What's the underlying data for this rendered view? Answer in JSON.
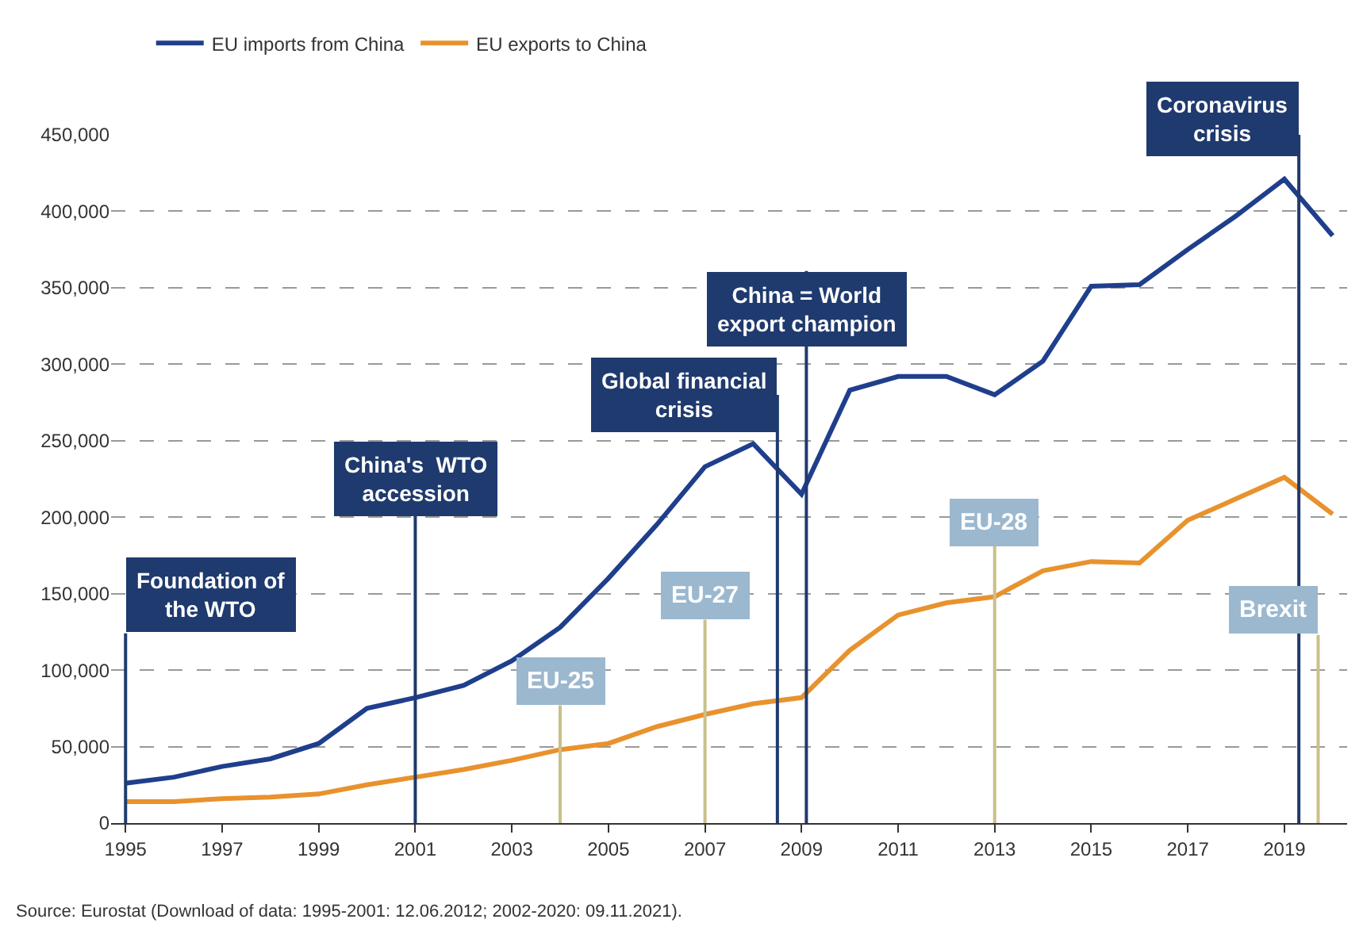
{
  "chart_data": {
    "type": "line",
    "x": [
      1995,
      1996,
      1997,
      1998,
      1999,
      2000,
      2001,
      2002,
      2003,
      2004,
      2005,
      2006,
      2007,
      2008,
      2009,
      2010,
      2011,
      2012,
      2013,
      2014,
      2015,
      2016,
      2017,
      2018,
      2019,
      2020
    ],
    "series": [
      {
        "name": "EU imports from China",
        "color": "#1f3f8c",
        "values": [
          26000,
          30000,
          37000,
          42000,
          52000,
          75000,
          82000,
          90000,
          106000,
          128000,
          160000,
          195000,
          233000,
          248000,
          215000,
          283000,
          292000,
          292000,
          280000,
          302000,
          351000,
          352000,
          375000,
          397000,
          421000,
          384000
        ]
      },
      {
        "name": "EU exports to China",
        "color": "#e8922e",
        "values": [
          14000,
          14000,
          16000,
          17000,
          19000,
          25000,
          30000,
          35000,
          41000,
          48000,
          52000,
          63000,
          71000,
          78000,
          82000,
          113000,
          136000,
          144000,
          148000,
          165000,
          171000,
          170000,
          198000,
          212000,
          226000,
          202000
        ]
      }
    ],
    "xlim": [
      1994.7,
      2020.3
    ],
    "xticks": [
      1995,
      1997,
      1999,
      2001,
      2003,
      2005,
      2007,
      2009,
      2011,
      2013,
      2015,
      2017,
      2019
    ],
    "ylim": [
      0,
      450000
    ],
    "yticks": [
      {
        "value": 0,
        "label": "0"
      },
      {
        "value": 50000,
        "label": "50,000"
      },
      {
        "value": 100000,
        "label": "100,000"
      },
      {
        "value": 150000,
        "label": "150,000"
      },
      {
        "value": 200000,
        "label": "200,000"
      },
      {
        "value": 250000,
        "label": "250,000"
      },
      {
        "value": 300000,
        "label": "300,000"
      },
      {
        "value": 350000,
        "label": "350,000"
      },
      {
        "value": 400000,
        "label": "400,000"
      },
      {
        "value": 450000,
        "label": "450,000"
      }
    ],
    "grid": "y",
    "legend": "top left",
    "line_style": "solid",
    "ref_lines": [
      {
        "axis": "x",
        "value": 1995,
        "label": "Foundation of\nthe WTO",
        "color": "#1f3a6e"
      },
      {
        "axis": "x",
        "value": 2001,
        "label": "China's  WTO\naccession",
        "color": "#1f3a6e"
      },
      {
        "axis": "x",
        "value": 2008.5,
        "label": "Global financial\ncrisis",
        "color": "#1f3a6e"
      },
      {
        "axis": "x",
        "value": 2009.1,
        "label": "China = World\nexport champion",
        "color": "#1f3a6e"
      },
      {
        "axis": "x",
        "value": 2019.3,
        "label": "Coronavirus\ncrisis",
        "color": "#1f3a6e"
      },
      {
        "axis": "x",
        "value": 2004,
        "label": "EU-25",
        "color": "#c9c08a"
      },
      {
        "axis": "x",
        "value": 2007,
        "label": "EU-27",
        "color": "#c9c08a"
      },
      {
        "axis": "x",
        "value": 2013,
        "label": "EU-28",
        "color": "#c9c08a"
      },
      {
        "axis": "x",
        "value": 2019.7,
        "label": "Brexit",
        "color": "#c9c08a"
      }
    ],
    "annotations": [
      "Source: Eurostat (Download of data: 1995-2001: 12.06.2012; 2002-2020: 09.11.2021)."
    ]
  }
}
